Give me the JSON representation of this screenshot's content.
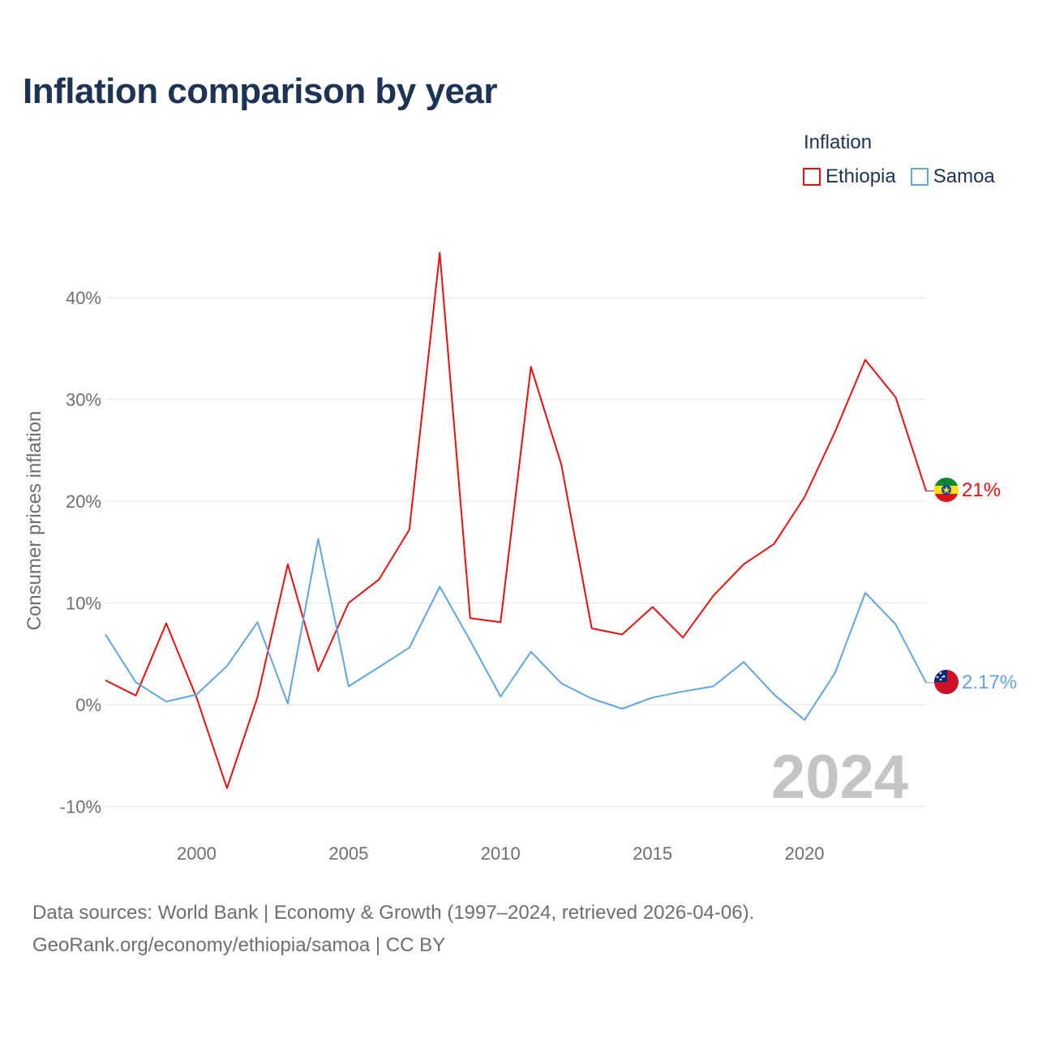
{
  "title": "Inflation comparison by year",
  "legend": {
    "title": "Inflation",
    "items": [
      {
        "label": "Ethiopia",
        "color": "#e8100f"
      },
      {
        "label": "Samoa",
        "color": "#5fa5e6"
      }
    ]
  },
  "chart_data": {
    "type": "line",
    "ylabel": "Consumer prices inflation",
    "xlabel": "",
    "year_watermark": "2024",
    "x": [
      1997,
      1998,
      1999,
      2000,
      2001,
      2002,
      2003,
      2004,
      2005,
      2006,
      2007,
      2008,
      2009,
      2010,
      2011,
      2012,
      2013,
      2014,
      2015,
      2016,
      2017,
      2018,
      2019,
      2020,
      2021,
      2022,
      2023,
      2024
    ],
    "xlim": [
      1997,
      2024
    ],
    "ylim": [
      -10,
      45
    ],
    "x_ticks": [
      2000,
      2005,
      2010,
      2015,
      2020
    ],
    "y_ticks": [
      -10,
      0,
      10,
      20,
      30,
      40
    ],
    "y_tick_labels": [
      "-10%",
      "0%",
      "10%",
      "20%",
      "30%",
      "40%"
    ],
    "series": [
      {
        "name": "Ethiopia",
        "color": "#e8100f",
        "end_label": "21%",
        "values": [
          2.4,
          0.9,
          8.0,
          0.7,
          -8.2,
          0.7,
          13.8,
          3.3,
          10.0,
          12.3,
          17.2,
          44.4,
          8.5,
          8.1,
          33.2,
          23.6,
          7.5,
          6.9,
          9.6,
          6.6,
          10.7,
          13.8,
          15.8,
          20.4,
          26.8,
          33.9,
          30.2,
          21.0
        ]
      },
      {
        "name": "Samoa",
        "color": "#5fa5e6",
        "end_label": "2.17%",
        "values": [
          6.9,
          2.2,
          0.3,
          1.0,
          3.8,
          8.1,
          0.1,
          16.3,
          1.8,
          3.7,
          5.6,
          11.6,
          6.3,
          0.8,
          5.2,
          2.1,
          0.6,
          -0.4,
          0.7,
          1.3,
          1.8,
          4.2,
          1.0,
          -1.5,
          3.1,
          11.0,
          7.9,
          2.17
        ]
      }
    ]
  },
  "source": {
    "line1": "Data sources: World Bank | Economy & Growth (1997–2024, retrieved 2026-04-06).",
    "line2": "GeoRank.org/economy/ethiopia/samoa | CC BY"
  }
}
